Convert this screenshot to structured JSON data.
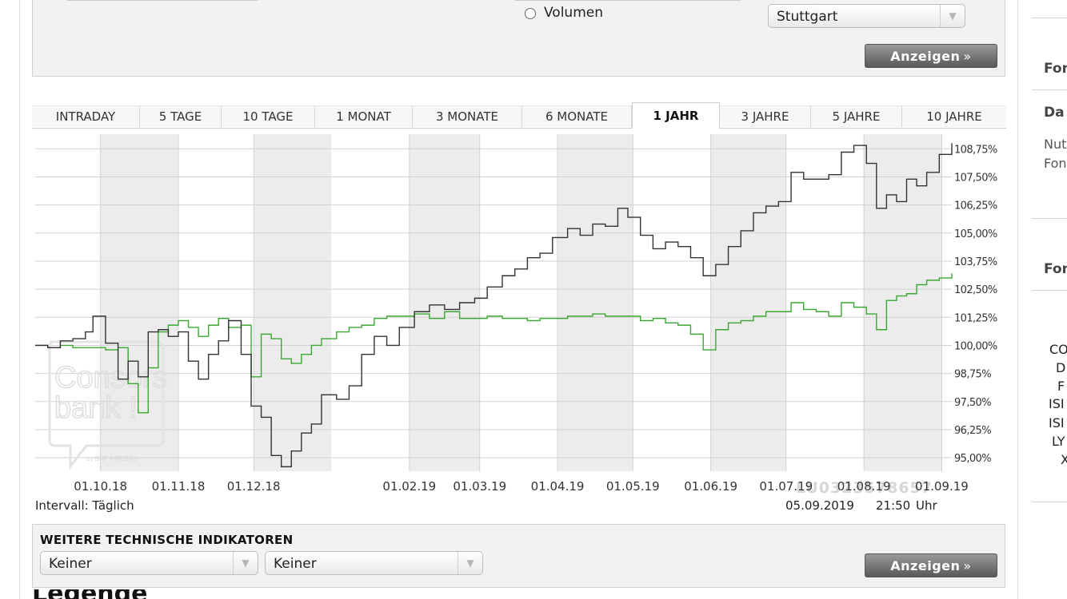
{
  "top": {
    "radio_label": "Volumen",
    "exchange_select": "Stuttgart",
    "show_button": "Anzeigen",
    "show_button_chevron": "»"
  },
  "tabs": [
    {
      "label": "INTRADAY",
      "active": false
    },
    {
      "label": "5 TAGE",
      "active": false
    },
    {
      "label": "10 TAGE",
      "active": false
    },
    {
      "label": "1 MONAT",
      "active": false
    },
    {
      "label": "3 MONATE",
      "active": false
    },
    {
      "label": "6 MONATE",
      "active": false
    },
    {
      "label": "1 JAHR",
      "active": true
    },
    {
      "label": "3 JAHRE",
      "active": false
    },
    {
      "label": "5 JAHRE",
      "active": false
    },
    {
      "label": "10 JAHRE",
      "active": false
    }
  ],
  "chart_data": {
    "type": "line",
    "isin_watermark": "LU0323578657",
    "logo_text": [
      "Consors",
      "bank !",
      "by BNP PARIBAS"
    ],
    "x_tick_labels": [
      "01.10.18",
      "01.11.18",
      "01.12.18",
      "01.02.19",
      "01.03.19",
      "01.04.19",
      "01.05.19",
      "01.06.19",
      "01.07.19",
      "01.08.19",
      "01.09.19"
    ],
    "y_tick_labels": [
      "108,75%",
      "107,50%",
      "106,25%",
      "105,00%",
      "103,75%",
      "102,50%",
      "101,25%",
      "100,00%",
      "98,75%",
      "97,50%",
      "96,25%",
      "95,00%"
    ],
    "ylim": [
      94.4,
      109.4
    ],
    "xlim": [
      "2018-09-05",
      "2019-09-05"
    ],
    "shaded_months": [
      "October",
      "December",
      "February",
      "April",
      "June",
      "August"
    ],
    "colors": {
      "series1": "#333333",
      "series2": "#3aa832",
      "grid": "#d2d2d2",
      "shade": "#ececec"
    },
    "series": [
      {
        "x": [
          "2018-09-05",
          "2018-09-10",
          "2018-09-15",
          "2018-09-20",
          "2018-09-25",
          "2018-09-28",
          "2018-10-03",
          "2018-10-08",
          "2018-10-12",
          "2018-10-16",
          "2018-10-20",
          "2018-10-24",
          "2018-10-28",
          "2018-11-01",
          "2018-11-05",
          "2018-11-09",
          "2018-11-13",
          "2018-11-17",
          "2018-11-21",
          "2018-11-26",
          "2018-11-30",
          "2018-12-04",
          "2018-12-08",
          "2018-12-12",
          "2018-12-16",
          "2018-12-20",
          "2018-12-24",
          "2018-12-28",
          "2019-01-03",
          "2019-01-08",
          "2019-01-13",
          "2019-01-18",
          "2019-01-23",
          "2019-01-28",
          "2019-02-03",
          "2019-02-09",
          "2019-02-15",
          "2019-02-21",
          "2019-02-27",
          "2019-03-04",
          "2019-03-10",
          "2019-03-15",
          "2019-03-20",
          "2019-03-25",
          "2019-03-30",
          "2019-04-05",
          "2019-04-10",
          "2019-04-15",
          "2019-04-20",
          "2019-04-25",
          "2019-04-29",
          "2019-05-04",
          "2019-05-09",
          "2019-05-14",
          "2019-05-19",
          "2019-05-24",
          "2019-05-29",
          "2019-06-03",
          "2019-06-08",
          "2019-06-13",
          "2019-06-18",
          "2019-06-23",
          "2019-06-28",
          "2019-07-03",
          "2019-07-08",
          "2019-07-13",
          "2019-07-18",
          "2019-07-23",
          "2019-07-28",
          "2019-08-02",
          "2019-08-06",
          "2019-08-10",
          "2019-08-14",
          "2019-08-18",
          "2019-08-22",
          "2019-08-26",
          "2019-08-31",
          "2019-09-05"
        ],
        "y": [
          100.0,
          99.9,
          100.2,
          100.3,
          100.6,
          101.3,
          100.1,
          98.5,
          99.3,
          98.6,
          100.6,
          100.7,
          100.4,
          100.6,
          99.3,
          98.5,
          99.6,
          100.2,
          101.1,
          99.6,
          97.3,
          96.8,
          95.1,
          94.6,
          95.3,
          96.1,
          96.5,
          97.8,
          97.6,
          98.2,
          99.6,
          100.4,
          100.0,
          100.8,
          101.5,
          101.8,
          101.6,
          101.9,
          102.1,
          102.6,
          103.1,
          103.4,
          103.9,
          104.1,
          104.8,
          105.2,
          104.9,
          105.4,
          105.3,
          106.1,
          105.7,
          104.9,
          104.3,
          104.6,
          104.4,
          103.9,
          103.1,
          103.6,
          104.4,
          105.1,
          105.9,
          106.2,
          106.4,
          107.7,
          107.4,
          107.4,
          107.6,
          108.6,
          108.9,
          108.1,
          106.1,
          106.7,
          106.4,
          107.4,
          107.1,
          107.7,
          108.5,
          109.0
        ]
      },
      {
        "x": [
          "2018-09-05",
          "2018-09-10",
          "2018-09-15",
          "2018-09-20",
          "2018-09-25",
          "2018-09-28",
          "2018-10-03",
          "2018-10-08",
          "2018-10-12",
          "2018-10-16",
          "2018-10-20",
          "2018-10-24",
          "2018-10-28",
          "2018-11-01",
          "2018-11-05",
          "2018-11-09",
          "2018-11-13",
          "2018-11-17",
          "2018-11-21",
          "2018-11-26",
          "2018-11-30",
          "2018-12-04",
          "2018-12-08",
          "2018-12-12",
          "2018-12-16",
          "2018-12-20",
          "2018-12-24",
          "2018-12-28",
          "2019-01-03",
          "2019-01-08",
          "2019-01-13",
          "2019-01-18",
          "2019-01-23",
          "2019-01-28",
          "2019-02-03",
          "2019-02-09",
          "2019-02-15",
          "2019-02-21",
          "2019-02-27",
          "2019-03-04",
          "2019-03-10",
          "2019-03-15",
          "2019-03-20",
          "2019-03-25",
          "2019-03-30",
          "2019-04-05",
          "2019-04-10",
          "2019-04-15",
          "2019-04-20",
          "2019-04-25",
          "2019-04-29",
          "2019-05-04",
          "2019-05-09",
          "2019-05-14",
          "2019-05-19",
          "2019-05-24",
          "2019-05-29",
          "2019-06-03",
          "2019-06-08",
          "2019-06-13",
          "2019-06-18",
          "2019-06-23",
          "2019-06-28",
          "2019-07-03",
          "2019-07-08",
          "2019-07-13",
          "2019-07-18",
          "2019-07-23",
          "2019-07-28",
          "2019-08-02",
          "2019-08-06",
          "2019-08-10",
          "2019-08-14",
          "2019-08-18",
          "2019-08-22",
          "2019-08-26",
          "2019-08-31",
          "2019-09-05"
        ],
        "y": [
          100.0,
          99.9,
          100.0,
          99.9,
          99.9,
          99.9,
          99.8,
          99.9,
          98.3,
          97.0,
          99.0,
          100.6,
          100.9,
          101.1,
          100.8,
          100.4,
          100.9,
          101.2,
          100.8,
          100.9,
          98.6,
          100.5,
          100.3,
          99.4,
          99.2,
          99.6,
          100.0,
          100.3,
          100.6,
          100.8,
          100.9,
          101.2,
          101.3,
          101.3,
          101.4,
          101.2,
          101.5,
          101.2,
          101.2,
          101.3,
          101.2,
          101.2,
          101.1,
          101.2,
          101.2,
          101.3,
          101.3,
          101.4,
          101.3,
          101.3,
          101.3,
          101.1,
          101.2,
          101.0,
          100.9,
          100.5,
          99.8,
          100.7,
          101.0,
          101.1,
          101.3,
          101.5,
          101.5,
          101.9,
          101.6,
          101.5,
          101.3,
          101.9,
          101.7,
          101.4,
          100.7,
          102.0,
          102.2,
          102.3,
          102.7,
          102.9,
          103.0,
          103.2
        ]
      }
    ]
  },
  "footer": {
    "interval": "Intervall: Täglich",
    "date": "05.09.2019",
    "time": "21:50 Uhr"
  },
  "indicators": {
    "title": "WEITERE TECHNISCHE INDIKATOREN",
    "select1": "Keiner",
    "select2": "Keiner",
    "show_button": "Anzeigen",
    "show_button_chevron": "»"
  },
  "legend_cut": "Legende",
  "sidebar": {
    "heading1": "Fon",
    "heading2": "Da",
    "text1": "Nut",
    "text2": "Fon",
    "heading3": "Fon",
    "list": [
      "CO",
      "D",
      "F",
      "ISI",
      "ISI",
      "LY",
      "X"
    ]
  }
}
